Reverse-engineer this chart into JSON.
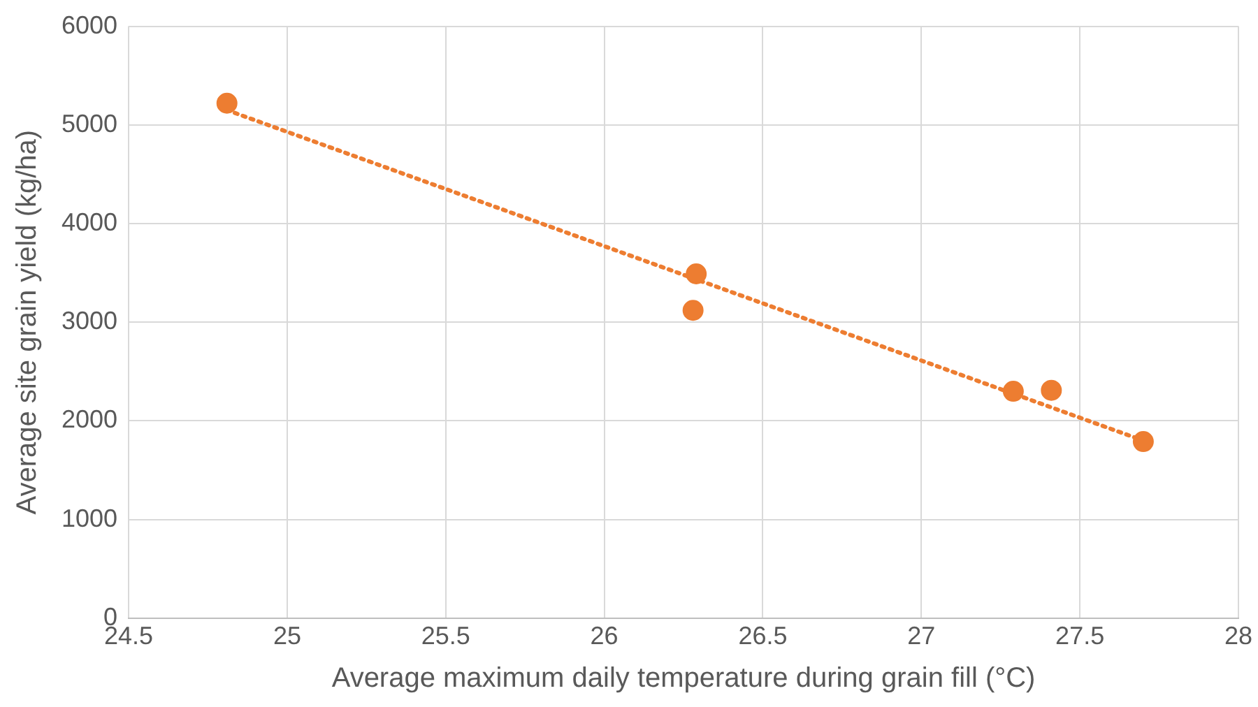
{
  "chart_data": {
    "type": "scatter",
    "xlabel": "Average maximum daily temperature during grain fill (°C)",
    "ylabel": "Average site grain yield (kg/ha)",
    "xlim": [
      24.5,
      28
    ],
    "xticks": [
      24.5,
      25,
      25.5,
      26,
      26.5,
      27,
      27.5,
      28
    ],
    "ylim": [
      0,
      6000
    ],
    "yticks": [
      0,
      1000,
      2000,
      3000,
      4000,
      5000,
      6000
    ],
    "grid": true,
    "legend": false,
    "series": [
      {
        "type": "scatter",
        "color": "#ed7d31",
        "marker": "circle",
        "x": [
          24.81,
          26.29,
          26.28,
          27.29,
          27.41,
          27.7
        ],
        "values": [
          5220,
          3490,
          3120,
          2300,
          2310,
          1790
        ]
      },
      {
        "type": "line",
        "color": "#ed7d31",
        "line_style": "dotted",
        "marker": "none",
        "x": [
          24.81,
          27.7
        ],
        "values": [
          5150,
          1800
        ]
      }
    ]
  }
}
